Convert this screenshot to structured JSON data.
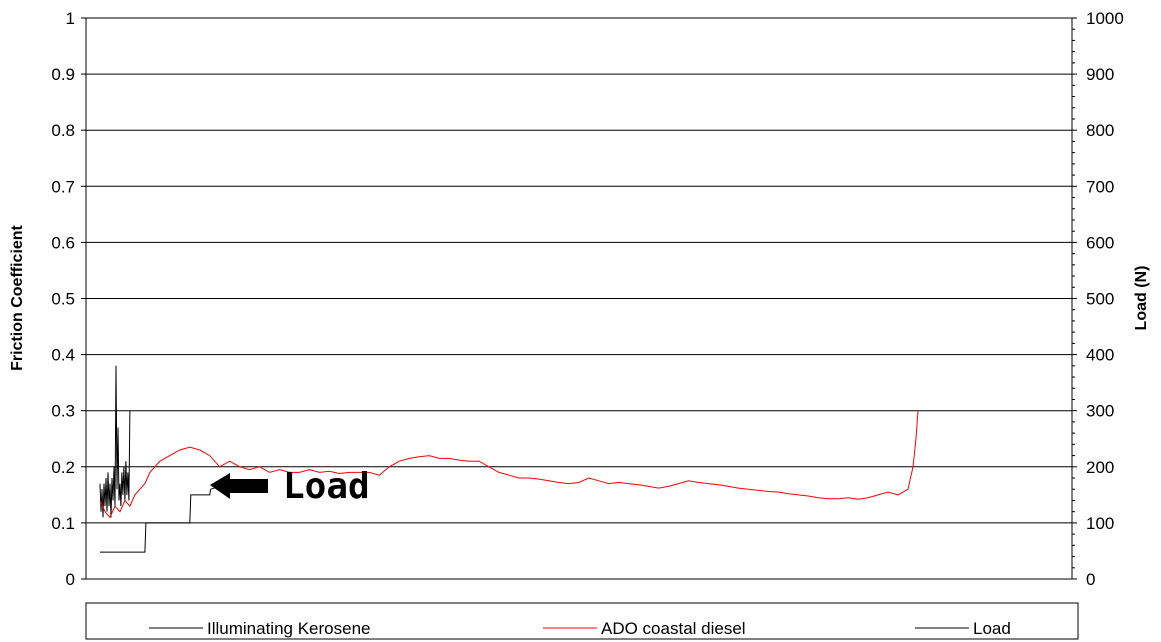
{
  "chart_data": {
    "type": "line",
    "title": "",
    "ylabel": "Friction Coefficient",
    "y2label": "Load (N)",
    "ylim": [
      0,
      1
    ],
    "y2lim": [
      0,
      1000
    ],
    "yticks": [
      "0",
      "0.1",
      "0.2",
      "0.3",
      "0.4",
      "0.5",
      "0.6",
      "0.7",
      "0.8",
      "0.9",
      "1"
    ],
    "y2ticks": [
      "0",
      "100",
      "200",
      "300",
      "400",
      "500",
      "600",
      "700",
      "800",
      "900",
      "1000"
    ],
    "grid": true,
    "legend_position": "bottom",
    "annotation": {
      "text": "Load",
      "points_to": "load"
    },
    "series": [
      {
        "name": "Illuminating Kerosene",
        "color": "#000000",
        "axis": "left",
        "x": [
          0,
          1,
          2,
          3,
          4,
          5,
          6,
          7,
          8,
          9,
          10,
          11,
          12,
          13,
          14,
          15,
          16,
          17,
          18,
          19,
          20,
          21,
          22,
          23,
          24,
          25,
          26,
          27,
          28,
          29,
          30
        ],
        "values": [
          0.17,
          0.12,
          0.16,
          0.11,
          0.17,
          0.13,
          0.18,
          0.12,
          0.19,
          0.13,
          0.17,
          0.11,
          0.18,
          0.14,
          0.2,
          0.13,
          0.38,
          0.16,
          0.27,
          0.14,
          0.17,
          0.13,
          0.19,
          0.15,
          0.2,
          0.14,
          0.21,
          0.15,
          0.19,
          0.14,
          0.3
        ]
      },
      {
        "name": "ADO coastal diesel",
        "color": "#ff0000",
        "axis": "left",
        "x": [
          0,
          5,
          10,
          15,
          20,
          25,
          30,
          35,
          40,
          45,
          50,
          60,
          70,
          80,
          90,
          100,
          110,
          120,
          130,
          140,
          150,
          160,
          170,
          180,
          190,
          200,
          210,
          220,
          230,
          240,
          250,
          260,
          270,
          280,
          290,
          300,
          310,
          320,
          330,
          340,
          350,
          360,
          370,
          380,
          390,
          400,
          410,
          420,
          430,
          440,
          450,
          460,
          470,
          480,
          490,
          500,
          510,
          520,
          530,
          540,
          550,
          560,
          570,
          580,
          590,
          600,
          610,
          620,
          630,
          640,
          650,
          660,
          670,
          680,
          690,
          700,
          710,
          720,
          730,
          740,
          750,
          760,
          770,
          780,
          790,
          800,
          810,
          815,
          818,
          820
        ],
        "values": [
          0.14,
          0.12,
          0.11,
          0.13,
          0.12,
          0.14,
          0.13,
          0.15,
          0.16,
          0.17,
          0.19,
          0.21,
          0.22,
          0.23,
          0.235,
          0.23,
          0.22,
          0.2,
          0.21,
          0.2,
          0.195,
          0.2,
          0.19,
          0.195,
          0.19,
          0.19,
          0.195,
          0.19,
          0.192,
          0.188,
          0.19,
          0.19,
          0.19,
          0.185,
          0.2,
          0.21,
          0.215,
          0.218,
          0.22,
          0.215,
          0.215,
          0.212,
          0.21,
          0.21,
          0.2,
          0.19,
          0.185,
          0.18,
          0.18,
          0.178,
          0.175,
          0.172,
          0.17,
          0.172,
          0.18,
          0.175,
          0.17,
          0.172,
          0.17,
          0.168,
          0.165,
          0.162,
          0.165,
          0.17,
          0.175,
          0.172,
          0.17,
          0.168,
          0.165,
          0.162,
          0.16,
          0.158,
          0.156,
          0.155,
          0.152,
          0.15,
          0.148,
          0.145,
          0.143,
          0.143,
          0.145,
          0.142,
          0.145,
          0.15,
          0.155,
          0.15,
          0.16,
          0.2,
          0.25,
          0.3
        ]
      },
      {
        "name": "Load",
        "color": "#000000",
        "axis": "right",
        "x": [
          0,
          45,
          46,
          70,
          80,
          90,
          91,
          100,
          101,
          110,
          111,
          120,
          121
        ],
        "values": [
          48,
          48,
          100,
          100,
          100,
          100,
          150,
          150,
          150,
          150,
          160,
          165,
          170
        ]
      }
    ]
  }
}
